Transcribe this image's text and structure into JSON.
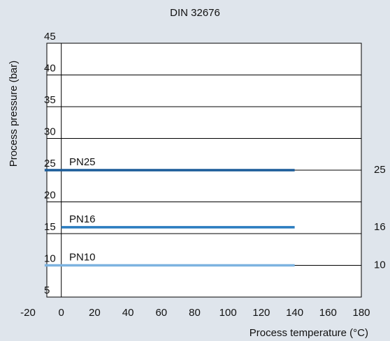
{
  "chart_data": {
    "type": "line",
    "title": "DIN 32676",
    "xlabel": "Process temperature (°C)",
    "ylabel": "Process pressure (bar)",
    "xlim": [
      -20,
      180
    ],
    "xticks": [
      -20,
      0,
      20,
      40,
      60,
      80,
      100,
      120,
      140,
      160,
      180
    ],
    "ylim": [
      5,
      45
    ],
    "yticks": [
      5,
      10,
      15,
      20,
      25,
      30,
      35,
      40,
      45
    ],
    "grid": true,
    "series": [
      {
        "name": "PN25",
        "color": "#1b5c99",
        "x": [
          -10,
          140
        ],
        "values": [
          25,
          25
        ]
      },
      {
        "name": "PN16",
        "color": "#2a7cbf",
        "x": [
          0,
          140
        ],
        "values": [
          16,
          16
        ]
      },
      {
        "name": "PN10",
        "color": "#7db3e0",
        "x": [
          -10,
          140
        ],
        "values": [
          10,
          10
        ]
      }
    ]
  }
}
